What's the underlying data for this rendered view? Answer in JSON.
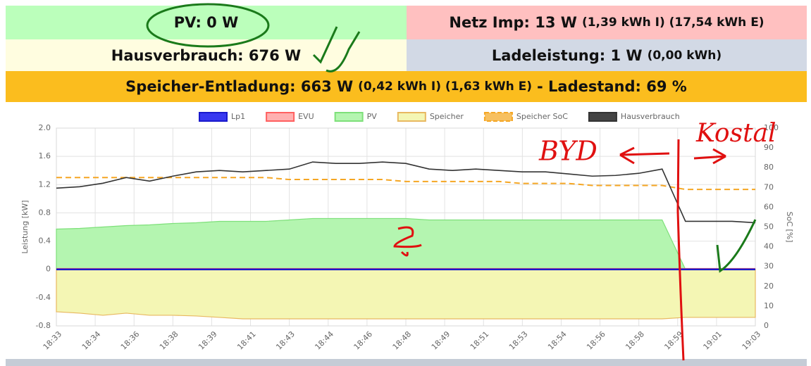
{
  "panels": {
    "pv": {
      "label": "PV: 0 W"
    },
    "grid": {
      "label": "Netz Imp: 13 W",
      "detail": "(1,39 kWh I) (17,54 kWh E)"
    },
    "house": {
      "label": "Hausverbrauch: 676 W"
    },
    "charge": {
      "label": "Ladeleistung: 1 W",
      "detail": "(0,00 kWh)"
    },
    "storage": {
      "label": "Speicher-Entladung: 663 W",
      "detail": "(0,42 kWh I) (1,63 kWh E)",
      "soc": "- Ladestand: 69 %"
    }
  },
  "annotations": [
    "BYD",
    "Kostal"
  ],
  "chart_data": {
    "type": "line",
    "y_label": "Leistung [kW]",
    "y2_label": "SoC [%]",
    "x": [
      "18:33",
      "18:34",
      "18:35",
      "18:36",
      "18:37",
      "18:38",
      "18:39",
      "18:40",
      "18:41",
      "18:42",
      "18:43",
      "18:44",
      "18:45",
      "18:46",
      "18:47",
      "18:48",
      "18:49",
      "18:50",
      "18:51",
      "18:52",
      "18:53",
      "18:54",
      "18:55",
      "18:56",
      "18:57",
      "18:58",
      "18:59",
      "19:00",
      "19:01",
      "19:02",
      "19:03"
    ],
    "xticks": [
      "18:33",
      "18:34",
      "18:36",
      "18:38",
      "18:39",
      "18:41",
      "18:43",
      "18:44",
      "18:46",
      "18:48",
      "18:49",
      "18:51",
      "18:53",
      "18:54",
      "18:56",
      "18:58",
      "18:59",
      "19:01",
      "19:03"
    ],
    "ylim": [
      -0.8,
      2.0
    ],
    "yticks": [
      {
        "value": 2,
        "label": "2.0"
      },
      1.6,
      1.2,
      0.8,
      0.4,
      0,
      -0.4,
      -0.8
    ],
    "y2lim": [
      0,
      100
    ],
    "y2ticks": [
      100,
      90,
      80,
      70,
      60,
      50,
      40,
      30,
      20,
      10,
      0
    ],
    "grid": true,
    "series": [
      {
        "name": "Speicher",
        "style": "area",
        "color": "#e8b860",
        "fill": "#f4f6b4",
        "values": [
          -0.6,
          -0.62,
          -0.65,
          -0.62,
          -0.65,
          -0.65,
          -0.66,
          -0.68,
          -0.7,
          -0.7,
          -0.7,
          -0.7,
          -0.7,
          -0.7,
          -0.7,
          -0.7,
          -0.7,
          -0.7,
          -0.7,
          -0.7,
          -0.7,
          -0.7,
          -0.7,
          -0.7,
          -0.7,
          -0.7,
          -0.7,
          -0.68,
          -0.68,
          -0.68,
          -0.68
        ]
      },
      {
        "name": "PV",
        "style": "area",
        "color": "#7ee07a",
        "fill": "#b4f5b0",
        "values": [
          0.57,
          0.58,
          0.6,
          0.62,
          0.63,
          0.65,
          0.66,
          0.68,
          0.68,
          0.68,
          0.7,
          0.72,
          0.72,
          0.72,
          0.72,
          0.72,
          0.7,
          0.7,
          0.7,
          0.7,
          0.7,
          0.7,
          0.7,
          0.7,
          0.7,
          0.7,
          0.7,
          0,
          0,
          0,
          0
        ]
      },
      {
        "name": "EVU",
        "style": "line",
        "color": "#ff6060",
        "fill": "#ffb0b0",
        "values": [
          0.01,
          0.01,
          0.01,
          0.01,
          0.01,
          0.01,
          0.01,
          0.01,
          0.01,
          0.01,
          0.01,
          0.01,
          0.01,
          0.01,
          0.01,
          0.01,
          0.01,
          0.01,
          0.01,
          0.01,
          0.01,
          0.01,
          0.01,
          0.01,
          0.01,
          0.01,
          0.01,
          0.01,
          0.01,
          0.01,
          0.01
        ]
      },
      {
        "name": "Lp1",
        "style": "line",
        "color": "#1a1acc",
        "fill": "#3838f0",
        "values": [
          0,
          0,
          0,
          0,
          0,
          0,
          0,
          0,
          0,
          0,
          0,
          0,
          0,
          0,
          0,
          0,
          0,
          0,
          0,
          0,
          0,
          0,
          0,
          0,
          0,
          0,
          0,
          0,
          0,
          0,
          0
        ]
      },
      {
        "name": "Speicher SoC",
        "style": "line",
        "dash": true,
        "axis": "y2",
        "color": "#f5a623",
        "fill": "#f7c060",
        "values": [
          75,
          75,
          75,
          75,
          75,
          75,
          75,
          75,
          75,
          75,
          74,
          74,
          74,
          74,
          74,
          73,
          73,
          73,
          73,
          73,
          72,
          72,
          72,
          71,
          71,
          71,
          71,
          69,
          69,
          69,
          69
        ]
      },
      {
        "name": "Hausverbrauch",
        "style": "line",
        "color": "#333333",
        "fill": "#444444",
        "values": [
          1.15,
          1.17,
          1.22,
          1.3,
          1.25,
          1.32,
          1.38,
          1.4,
          1.38,
          1.4,
          1.42,
          1.52,
          1.5,
          1.5,
          1.52,
          1.5,
          1.42,
          1.4,
          1.42,
          1.4,
          1.38,
          1.38,
          1.35,
          1.32,
          1.33,
          1.36,
          1.42,
          0.68,
          0.68,
          0.68,
          0.66
        ]
      }
    ],
    "legend_order": [
      "Lp1",
      "EVU",
      "PV",
      "Speicher",
      "Speicher SoC",
      "Hausverbrauch"
    ]
  }
}
